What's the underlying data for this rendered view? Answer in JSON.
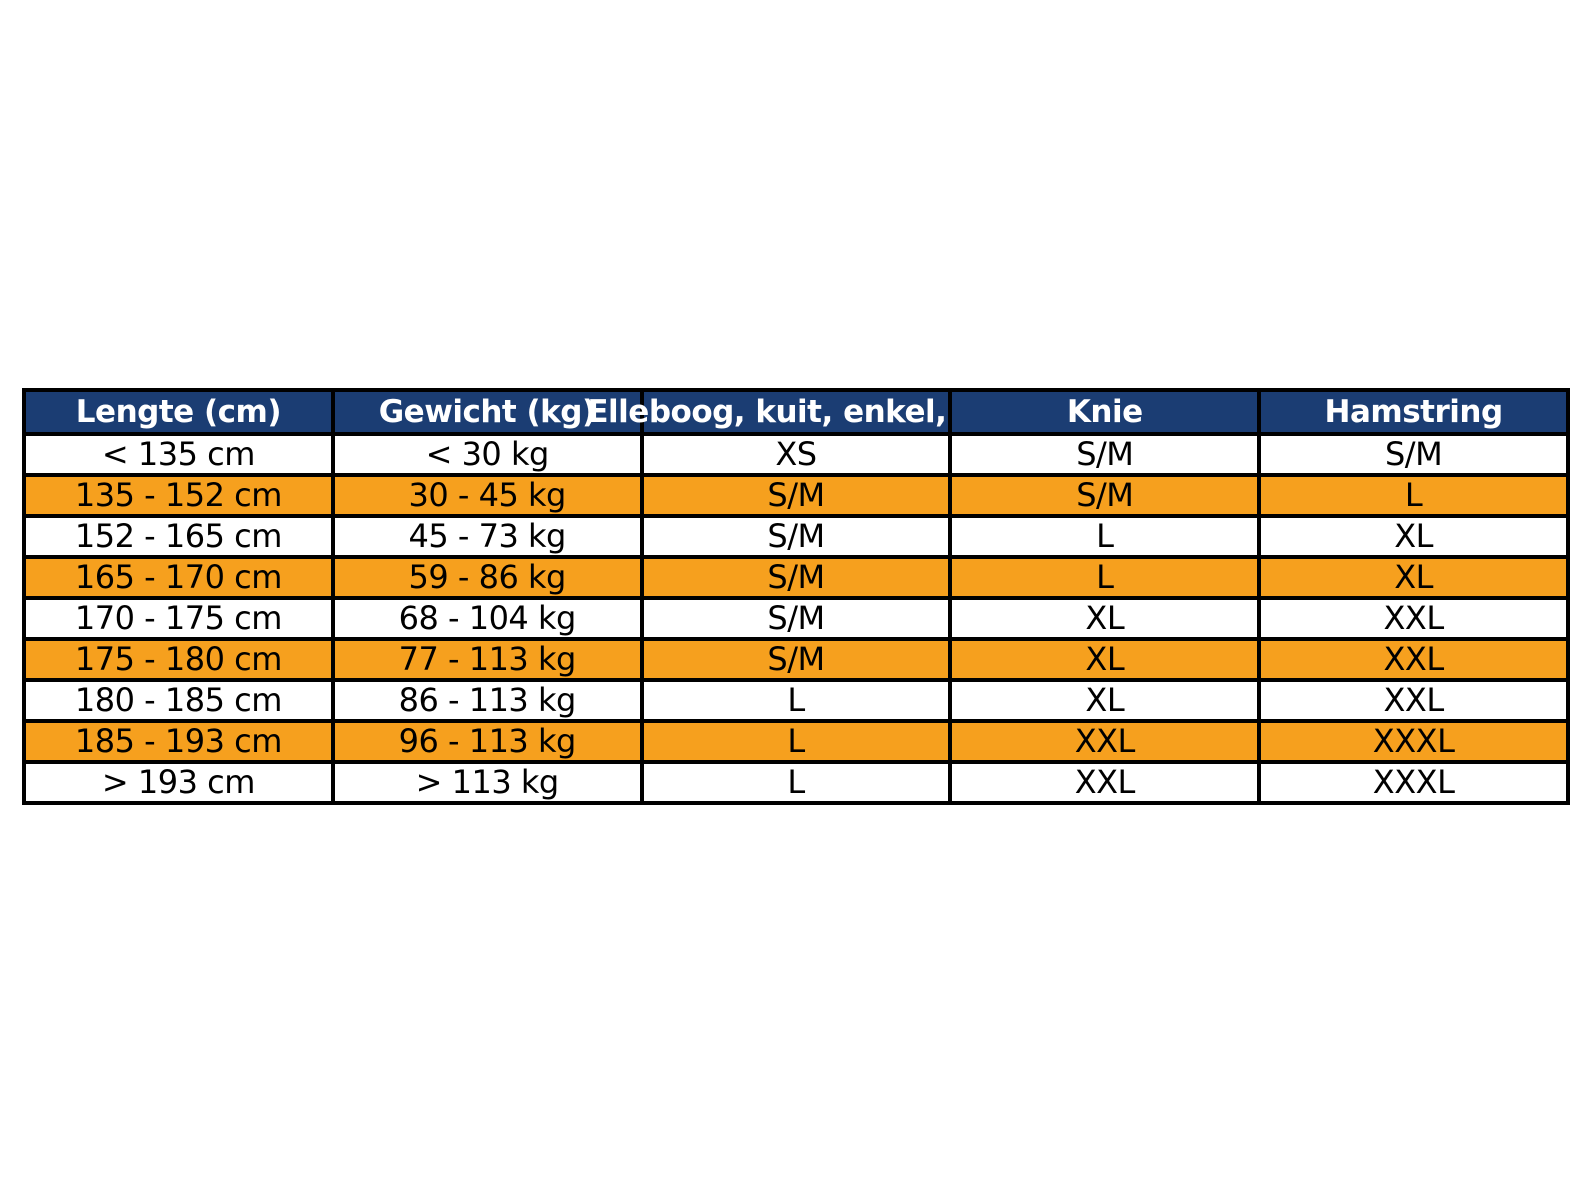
{
  "colors": {
    "page_bg": "#ffffff",
    "header_bg": "#1b3d73",
    "header_text": "#ffffff",
    "row_default": "#ffffff",
    "row_highlight": "#f6a01e",
    "body_text": "#000000",
    "border_color": "#000000"
  },
  "chart_data": {
    "type": "table",
    "columns": [
      "Lengte (cm)",
      "Gewicht (kg)",
      "Elleboog, kuit, enkel,",
      "Knie",
      "Hamstring"
    ],
    "rows": [
      [
        "< 135 cm",
        "< 30 kg",
        "XS",
        "S/M",
        "S/M"
      ],
      [
        "135 - 152 cm",
        "30 - 45 kg",
        "S/M",
        "S/M",
        "L"
      ],
      [
        "152 - 165 cm",
        "45 - 73 kg",
        "S/M",
        "L",
        "XL"
      ],
      [
        "165 - 170 cm",
        "59 - 86 kg",
        "S/M",
        "L",
        "XL"
      ],
      [
        "170 - 175 cm",
        "68 - 104 kg",
        "S/M",
        "XL",
        "XXL"
      ],
      [
        "175 - 180 cm",
        "77 - 113 kg",
        "S/M",
        "XL",
        "XXL"
      ],
      [
        "180 - 185 cm",
        "86 - 113 kg",
        "L",
        "XL",
        "XXL"
      ],
      [
        "185 - 193 cm",
        "96 - 113 kg",
        "L",
        "XXL",
        "XXXL"
      ],
      [
        "> 193 cm",
        "> 113 kg",
        "L",
        "XXL",
        "XXXL"
      ]
    ],
    "highlighted_row_indices": [
      1,
      3,
      5,
      7
    ]
  }
}
